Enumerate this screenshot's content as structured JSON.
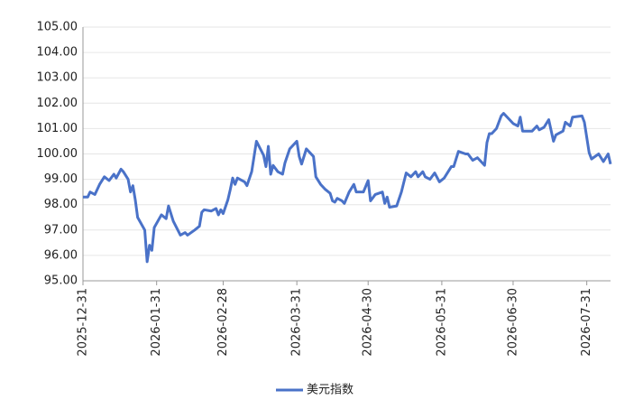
{
  "chart_data": {
    "type": "line",
    "x": [
      "2025-12-31",
      "2026-01-02",
      "2026-01-03",
      "2026-01-05",
      "2026-01-07",
      "2026-01-09",
      "2026-01-11",
      "2026-01-13",
      "2026-01-14",
      "2026-01-16",
      "2026-01-17",
      "2026-01-19",
      "2026-01-20",
      "2026-01-21",
      "2026-01-22",
      "2026-01-23",
      "2026-01-26",
      "2026-01-27",
      "2026-01-28",
      "2026-01-29",
      "2026-01-30",
      "2026-02-02",
      "2026-02-04",
      "2026-02-05",
      "2026-02-07",
      "2026-02-10",
      "2026-02-12",
      "2026-02-13",
      "2026-02-16",
      "2026-02-18",
      "2026-02-19",
      "2026-02-20",
      "2026-02-23",
      "2026-02-25",
      "2026-02-26",
      "2026-02-27",
      "2026-02-28",
      "2026-03-02",
      "2026-03-03",
      "2026-03-04",
      "2026-03-05",
      "2026-03-06",
      "2026-03-09",
      "2026-03-10",
      "2026-03-12",
      "2026-03-14",
      "2026-03-17",
      "2026-03-18",
      "2026-03-19",
      "2026-03-20",
      "2026-03-21",
      "2026-03-23",
      "2026-03-25",
      "2026-03-26",
      "2026-03-28",
      "2026-03-31",
      "2026-04-01",
      "2026-04-02",
      "2026-04-04",
      "2026-04-05",
      "2026-04-07",
      "2026-04-08",
      "2026-04-10",
      "2026-04-12",
      "2026-04-14",
      "2026-04-15",
      "2026-04-16",
      "2026-04-17",
      "2026-04-19",
      "2026-04-20",
      "2026-04-22",
      "2026-04-24",
      "2026-04-25",
      "2026-04-27",
      "2026-04-28",
      "2026-04-30",
      "2026-05-01",
      "2026-05-03",
      "2026-05-06",
      "2026-05-07",
      "2026-05-08",
      "2026-05-09",
      "2026-05-12",
      "2026-05-14",
      "2026-05-16",
      "2026-05-18",
      "2026-05-20",
      "2026-05-21",
      "2026-05-23",
      "2026-05-24",
      "2026-05-26",
      "2026-05-28",
      "2026-05-30",
      "2026-06-01",
      "2026-06-04",
      "2026-06-05",
      "2026-06-07",
      "2026-06-10",
      "2026-06-11",
      "2026-06-13",
      "2026-06-15",
      "2026-06-16",
      "2026-06-18",
      "2026-06-19",
      "2026-06-20",
      "2026-06-21",
      "2026-06-23",
      "2026-06-25",
      "2026-06-26",
      "2026-06-28",
      "2026-06-30",
      "2026-07-02",
      "2026-07-03",
      "2026-07-04",
      "2026-07-08",
      "2026-07-10",
      "2026-07-11",
      "2026-07-13",
      "2026-07-15",
      "2026-07-17",
      "2026-07-18",
      "2026-07-21",
      "2026-07-22",
      "2026-07-24",
      "2026-07-25",
      "2026-07-29",
      "2026-07-30",
      "2026-08-01",
      "2026-08-02",
      "2026-08-05",
      "2026-08-07",
      "2026-08-09",
      "2026-08-10"
    ],
    "series": [
      {
        "name": "美元指数",
        "color": "#4a72c8",
        "values": [
          98.3,
          98.3,
          98.5,
          98.4,
          98.8,
          99.1,
          98.95,
          99.2,
          99.05,
          99.4,
          99.3,
          99.0,
          98.5,
          98.75,
          98.2,
          97.5,
          97.0,
          95.75,
          96.4,
          96.2,
          97.1,
          97.6,
          97.45,
          97.95,
          97.35,
          96.8,
          96.9,
          96.8,
          97.0,
          97.15,
          97.7,
          97.8,
          97.75,
          97.85,
          97.6,
          97.8,
          97.65,
          98.2,
          98.6,
          99.05,
          98.8,
          99.05,
          98.9,
          98.75,
          99.3,
          100.5,
          99.95,
          99.5,
          100.3,
          99.2,
          99.55,
          99.3,
          99.2,
          99.65,
          100.2,
          100.5,
          99.9,
          99.6,
          100.2,
          100.1,
          99.9,
          99.1,
          98.8,
          98.6,
          98.45,
          98.15,
          98.1,
          98.25,
          98.15,
          98.05,
          98.5,
          98.8,
          98.5,
          98.5,
          98.5,
          98.95,
          98.15,
          98.4,
          98.5,
          98.05,
          98.3,
          97.9,
          97.95,
          98.5,
          99.25,
          99.1,
          99.3,
          99.1,
          99.3,
          99.1,
          99.0,
          99.25,
          98.9,
          99.05,
          99.5,
          99.5,
          100.1,
          100.0,
          100.0,
          99.75,
          99.85,
          99.75,
          99.55,
          100.45,
          100.8,
          100.8,
          101.0,
          101.5,
          101.6,
          101.4,
          101.2,
          101.1,
          101.45,
          100.9,
          100.9,
          101.1,
          100.95,
          101.05,
          101.35,
          100.5,
          100.75,
          100.9,
          101.25,
          101.1,
          101.45,
          101.5,
          101.25,
          100.05,
          99.8,
          100.0,
          99.7,
          100.0,
          99.6
        ]
      }
    ],
    "xlim": [
      "2025-12-31",
      "2026-08-10"
    ],
    "xticks": [
      "2025-12-31",
      "2026-01-31",
      "2026-02-28",
      "2026-03-31",
      "2026-04-30",
      "2026-05-31",
      "2026-06-30",
      "2026-07-31"
    ],
    "ylim": [
      95,
      105
    ],
    "yticks": [
      {
        "value": 95,
        "label": "95.00"
      },
      {
        "value": 96,
        "label": "96.00"
      },
      {
        "value": 97,
        "label": "97.00"
      },
      {
        "value": 98,
        "label": "98.00"
      },
      {
        "value": 99,
        "label": "99.00"
      },
      {
        "value": 100,
        "label": "100.00"
      },
      {
        "value": 101,
        "label": "101.00"
      },
      {
        "value": 102,
        "label": "102.00"
      },
      {
        "value": 103,
        "label": "103.00"
      },
      {
        "value": 104,
        "label": "104.00"
      },
      {
        "value": 105,
        "label": "105.00"
      }
    ],
    "grid": true,
    "legend": "bottom"
  }
}
